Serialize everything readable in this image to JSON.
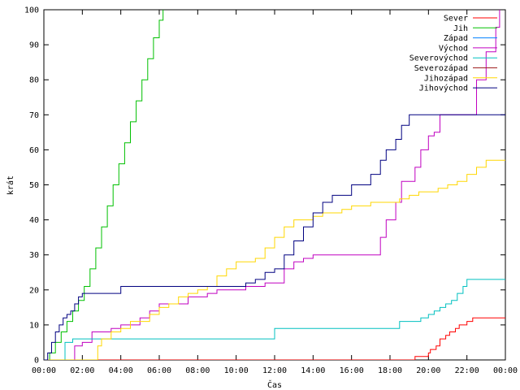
{
  "chart_data": {
    "type": "line",
    "title": "",
    "xlabel": "Čas",
    "ylabel": "krát",
    "xlim": [
      0,
      24
    ],
    "ylim": [
      0,
      100
    ],
    "x_ticks": [
      "00:00",
      "02:00",
      "04:00",
      "06:00",
      "08:00",
      "10:00",
      "12:00",
      "14:00",
      "16:00",
      "18:00",
      "20:00",
      "22:00",
      "00:00"
    ],
    "y_ticks": [
      0,
      10,
      20,
      30,
      40,
      50,
      60,
      70,
      80,
      90,
      100
    ],
    "grid": false,
    "legend": "top-right",
    "series": [
      {
        "name": "Sever",
        "color": "#ff0000",
        "x": [
          0,
          19.3,
          19.3,
          20.0,
          20.1,
          20.4,
          20.6,
          20.9,
          21.1,
          21.4,
          21.6,
          22.0,
          22.3,
          24
        ],
        "y": [
          0,
          0,
          1,
          2,
          3,
          4,
          6,
          7,
          8,
          9,
          10,
          11,
          12,
          12
        ]
      },
      {
        "name": "Jih",
        "color": "#00c000",
        "x": [
          0,
          0.3,
          0.6,
          0.9,
          1.2,
          1.5,
          1.8,
          2.1,
          2.4,
          2.7,
          3.0,
          3.3,
          3.6,
          3.9,
          4.2,
          4.5,
          4.8,
          5.1,
          5.4,
          5.7,
          6.0,
          6.2
        ],
        "y": [
          0,
          2,
          5,
          8,
          11,
          14,
          17,
          21,
          26,
          32,
          38,
          44,
          50,
          56,
          62,
          68,
          74,
          80,
          86,
          92,
          97,
          100
        ]
      },
      {
        "name": "Západ",
        "color": "#0080ff",
        "x": [],
        "y": []
      },
      {
        "name": "Východ",
        "color": "#c000c0",
        "x": [
          0,
          1.5,
          1.6,
          2.0,
          2.5,
          3.0,
          3.5,
          4.0,
          4.5,
          5.0,
          5.5,
          6.0,
          6.5,
          7.0,
          7.5,
          8.0,
          8.5,
          9.0,
          9.5,
          10.0,
          10.5,
          11.0,
          11.5,
          12.0,
          12.5,
          13.0,
          13.5,
          14.0,
          14.5,
          15.0,
          15.5,
          16.0,
          16.5,
          17.0,
          17.4,
          17.5,
          17.8,
          18.0,
          18.3,
          18.6,
          19.0,
          19.3,
          19.6,
          20.0,
          20.3,
          20.6,
          21.0,
          21.5,
          22.0,
          22.5,
          23.0,
          23.5,
          23.7
        ],
        "y": [
          0,
          0,
          4,
          5,
          8,
          8,
          9,
          10,
          10,
          12,
          14,
          16,
          16,
          16,
          18,
          18,
          19,
          20,
          20,
          20,
          21,
          21,
          22,
          22,
          26,
          28,
          29,
          30,
          30,
          30,
          30,
          30,
          30,
          30,
          30,
          35,
          40,
          40,
          45,
          51,
          51,
          55,
          60,
          64,
          65,
          70,
          70,
          70,
          70,
          80,
          88,
          95,
          100
        ]
      },
      {
        "name": "Severovýchod",
        "color": "#00c0c0",
        "x": [
          0,
          0.9,
          1.1,
          1.5,
          2.0,
          4.0,
          6.0,
          8.0,
          10.0,
          11.9,
          12.0,
          14.0,
          16.0,
          17.5,
          18.5,
          19.0,
          19.4,
          19.6,
          19.8,
          20.0,
          20.3,
          20.6,
          20.9,
          21.2,
          21.5,
          21.8,
          22.0,
          24
        ],
        "y": [
          0,
          0,
          5,
          6,
          6,
          6,
          6,
          6,
          6,
          6,
          9,
          9,
          9,
          9,
          11,
          11,
          11,
          12,
          12,
          13,
          14,
          15,
          16,
          17,
          19,
          21,
          23,
          23
        ]
      },
      {
        "name": "Severozápad",
        "color": "#a02020",
        "x": [],
        "y": []
      },
      {
        "name": "Jihozápad",
        "color": "#ffd700",
        "x": [
          0,
          2.7,
          2.8,
          3.0,
          3.5,
          4.0,
          4.5,
          5.0,
          5.5,
          6.0,
          6.5,
          7.0,
          7.5,
          8.0,
          8.5,
          9.0,
          9.5,
          10.0,
          10.5,
          11.0,
          11.5,
          12.0,
          12.5,
          13.0,
          13.5,
          14.0,
          14.5,
          15.0,
          15.5,
          16.0,
          16.5,
          17.0,
          17.5,
          18.0,
          18.5,
          19.0,
          19.5,
          20.0,
          20.5,
          21.0,
          21.5,
          22.0,
          22.5,
          23.0,
          24
        ],
        "y": [
          0,
          0,
          4,
          6,
          8,
          9,
          11,
          11,
          13,
          15,
          16,
          18,
          19,
          20,
          21,
          24,
          26,
          28,
          28,
          29,
          32,
          35,
          38,
          40,
          40,
          41,
          42,
          42,
          43,
          44,
          44,
          45,
          45,
          45,
          46,
          47,
          48,
          48,
          49,
          50,
          51,
          53,
          55,
          57,
          57
        ]
      },
      {
        "name": "Jihovýchod",
        "color": "#000080",
        "x": [
          0,
          0.2,
          0.4,
          0.6,
          0.8,
          1.0,
          1.2,
          1.4,
          1.6,
          1.8,
          2.0,
          3.0,
          3.8,
          4.0,
          6.0,
          8.0,
          10.0,
          10.5,
          11.0,
          11.5,
          12.0,
          12.5,
          13.0,
          13.5,
          14.0,
          14.5,
          15.0,
          15.5,
          16.0,
          16.5,
          17.0,
          17.5,
          17.8,
          18.0,
          18.3,
          18.6,
          19.0,
          19.5,
          20.0,
          22.0,
          24
        ],
        "y": [
          0,
          2,
          5,
          8,
          10,
          12,
          13,
          14,
          16,
          18,
          19,
          19,
          19,
          21,
          21,
          21,
          21,
          22,
          23,
          25,
          26,
          30,
          34,
          38,
          42,
          45,
          47,
          47,
          50,
          50,
          53,
          57,
          60,
          60,
          63,
          67,
          70,
          70,
          70,
          70,
          70
        ]
      }
    ]
  }
}
